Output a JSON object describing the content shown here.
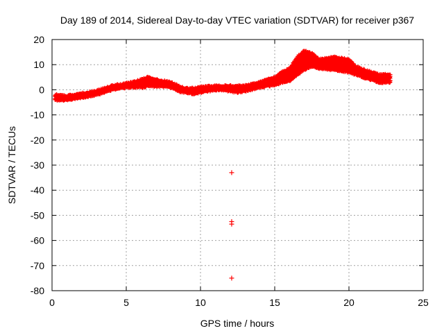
{
  "chart_data": {
    "type": "scatter",
    "title": "Day 189 of 2014, Sidereal Day-to-day VTEC variation (SDTVAR) for receiver p367",
    "xlabel": "GPS time / hours",
    "ylabel": "SDTVAR / TECUs",
    "xlim": [
      0,
      25
    ],
    "ylim": [
      -80,
      20
    ],
    "xticks": [
      0,
      5,
      10,
      15,
      20,
      25
    ],
    "yticks": [
      -80,
      -70,
      -60,
      -50,
      -40,
      -30,
      -20,
      -10,
      0,
      10,
      20
    ],
    "grid": true,
    "marker": "+",
    "series_color": "#ff0000",
    "series": [
      {
        "name": "SDTVAR",
        "band_upper": [
          [
            0.2,
            -2
          ],
          [
            1,
            -2.5
          ],
          [
            2,
            -1.5
          ],
          [
            3,
            -0.5
          ],
          [
            3.5,
            0.5
          ],
          [
            4,
            1.5
          ],
          [
            5,
            2.5
          ],
          [
            5.5,
            3
          ],
          [
            6,
            4
          ],
          [
            6.5,
            5
          ],
          [
            7,
            4
          ],
          [
            8,
            3
          ],
          [
            8.5,
            1.5
          ],
          [
            9,
            0.5
          ],
          [
            9.5,
            0.5
          ],
          [
            10,
            1
          ],
          [
            11,
            1.5
          ],
          [
            11.5,
            1.5
          ],
          [
            12.5,
            1.5
          ],
          [
            13,
            1.5
          ],
          [
            14,
            3
          ],
          [
            15,
            5
          ],
          [
            15.5,
            7
          ],
          [
            16,
            8.5
          ],
          [
            16.5,
            13
          ],
          [
            17,
            15.5
          ],
          [
            17.5,
            14.5
          ],
          [
            18,
            12
          ],
          [
            19,
            13
          ],
          [
            20,
            12
          ],
          [
            20.5,
            9
          ],
          [
            21,
            8
          ],
          [
            22,
            6
          ],
          [
            22.8,
            6
          ]
        ],
        "band_lower": [
          [
            0.2,
            -4
          ],
          [
            1,
            -4
          ],
          [
            2,
            -3
          ],
          [
            3,
            -2
          ],
          [
            3.5,
            -1
          ],
          [
            4,
            0
          ],
          [
            5,
            1
          ],
          [
            5.5,
            1
          ],
          [
            6,
            1
          ],
          [
            6.5,
            1.5
          ],
          [
            7,
            1.5
          ],
          [
            8,
            1
          ],
          [
            8.5,
            -0.5
          ],
          [
            9,
            -1
          ],
          [
            9.5,
            -1.5
          ],
          [
            10,
            -1
          ],
          [
            11,
            0
          ],
          [
            11.5,
            0
          ],
          [
            12.5,
            -1
          ],
          [
            13,
            -0.5
          ],
          [
            14,
            1
          ],
          [
            15,
            2
          ],
          [
            15.5,
            3
          ],
          [
            16,
            3.5
          ],
          [
            16.5,
            6
          ],
          [
            17,
            8
          ],
          [
            17.5,
            9.5
          ],
          [
            18,
            8.5
          ],
          [
            19,
            8
          ],
          [
            20,
            7
          ],
          [
            20.5,
            6
          ],
          [
            21,
            5
          ],
          [
            22,
            3
          ],
          [
            22.8,
            3
          ]
        ],
        "outliers": [
          [
            12.1,
            -33
          ],
          [
            12.1,
            -52.5
          ],
          [
            12.1,
            -53.5
          ],
          [
            12.1,
            -75
          ]
        ]
      }
    ]
  }
}
